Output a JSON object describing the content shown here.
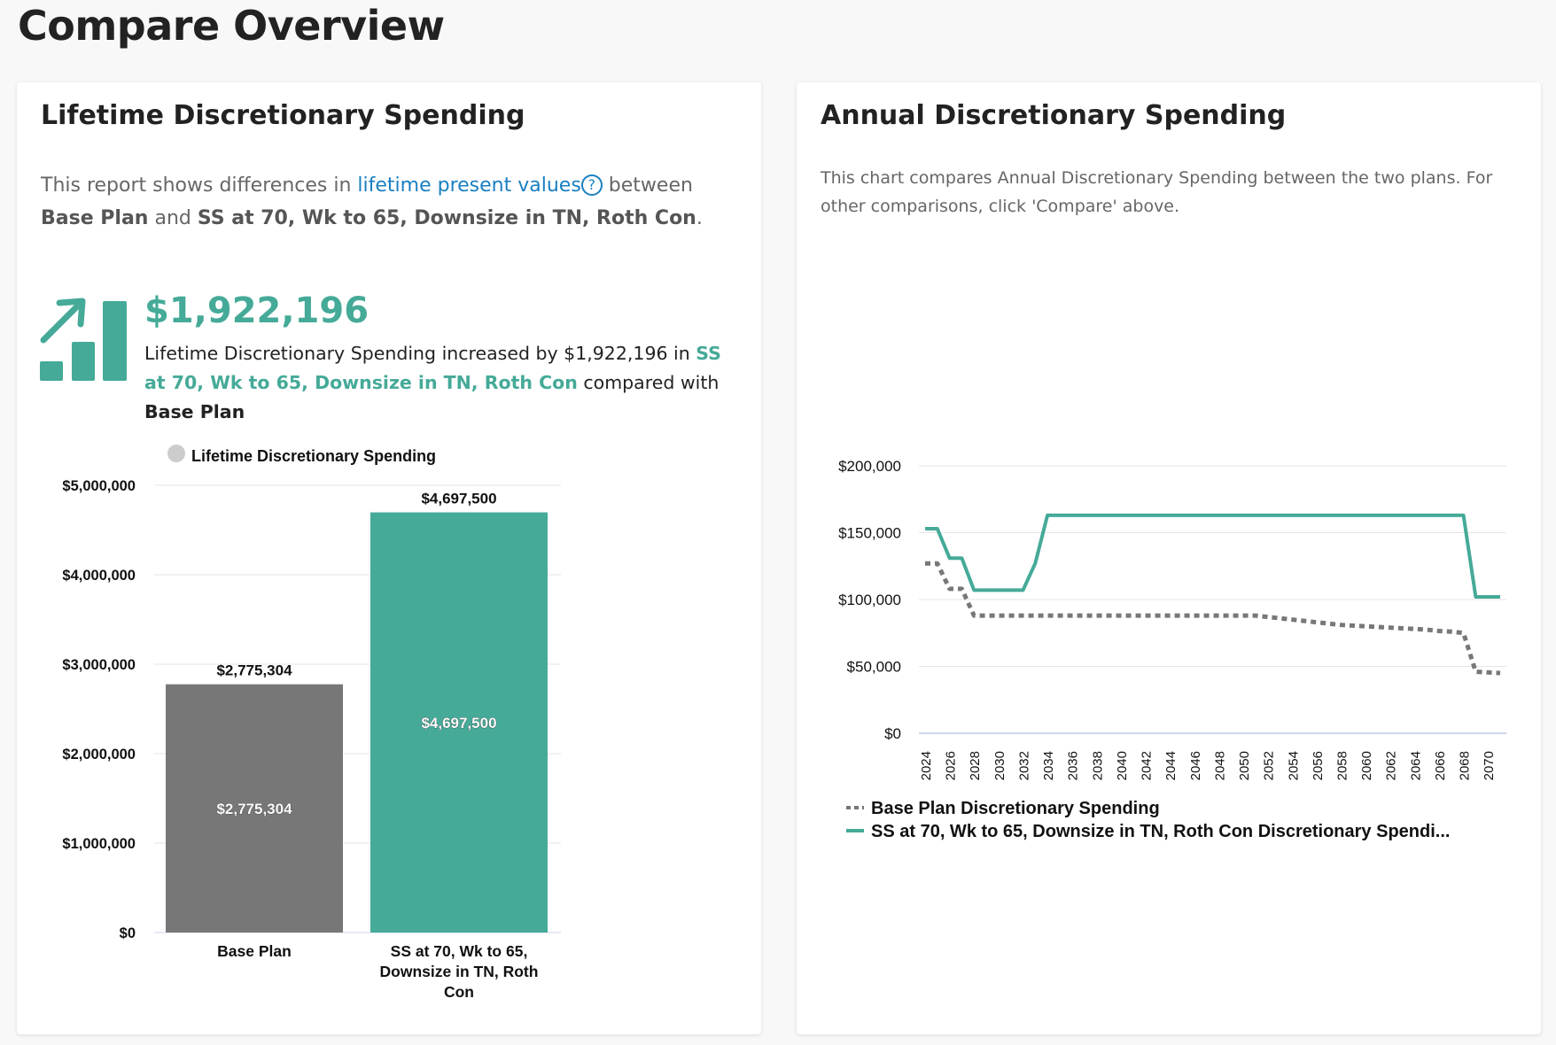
{
  "page_title": "Compare Overview",
  "left": {
    "title": "Lifetime Discretionary Spending",
    "desc_pre": "This report shows differences in",
    "desc_link": "lifetime present values",
    "desc_help": "?",
    "desc_mid": "between",
    "plan_a": "Base Plan",
    "and": "and",
    "plan_b": "SS at 70, Wk to 65, Downsize in TN, Roth Con",
    "period": ".",
    "big_value": "$1,922,196",
    "summary_pre": "Lifetime Discretionary Spending increased by $1,922,196 in",
    "summary_plan": "SS at 70, Wk to 65, Downsize in TN, Roth Con",
    "summary_mid": "compared with",
    "summary_base": "Base Plan"
  },
  "right": {
    "title": "Annual Discretionary Spending",
    "desc": "This chart compares Annual Discretionary Spending between the two plans. For other comparisons, click 'Compare' above."
  },
  "colors": {
    "teal": "#45aa98",
    "gray": "#777777",
    "link": "#1a7fc1"
  },
  "chart_data": [
    {
      "type": "bar",
      "title": "",
      "legend": "Lifetime Discretionary Spending",
      "legend_position": "top",
      "categories": [
        "Base Plan",
        "SS at 70, Wk to 65, Downsize in TN, Roth Con"
      ],
      "category_lines": [
        [
          "Base Plan"
        ],
        [
          "SS at 70, Wk to 65,",
          "Downsize in TN, Roth",
          "Con"
        ]
      ],
      "values": [
        2775304,
        4697500
      ],
      "value_labels": [
        "$2,775,304",
        "$4,697,500"
      ],
      "colors": [
        "#777777",
        "#45aa98"
      ],
      "ylim": [
        0,
        5000000
      ],
      "yticks": [
        0,
        1000000,
        2000000,
        3000000,
        4000000,
        5000000
      ],
      "ytick_labels": [
        "$0",
        "$1,000,000",
        "$2,000,000",
        "$3,000,000",
        "$4,000,000",
        "$5,000,000"
      ]
    },
    {
      "type": "line",
      "title": "",
      "legend_position": "bottom",
      "x": [
        2024,
        2025,
        2026,
        2027,
        2028,
        2029,
        2030,
        2031,
        2032,
        2033,
        2034,
        2035,
        2036,
        2037,
        2038,
        2039,
        2040,
        2041,
        2042,
        2043,
        2044,
        2045,
        2046,
        2047,
        2048,
        2049,
        2050,
        2051,
        2052,
        2053,
        2054,
        2055,
        2056,
        2057,
        2058,
        2059,
        2060,
        2061,
        2062,
        2063,
        2064,
        2065,
        2066,
        2067,
        2068,
        2069,
        2070,
        2071
      ],
      "xtick_labels": [
        "2024",
        "2026",
        "2028",
        "2030",
        "2032",
        "2034",
        "2036",
        "2038",
        "2040",
        "2042",
        "2044",
        "2046",
        "2048",
        "2050",
        "2052",
        "2054",
        "2056",
        "2058",
        "2060",
        "2062",
        "2064",
        "2066",
        "2068",
        "2070"
      ],
      "ylim": [
        0,
        200000
      ],
      "yticks": [
        0,
        50000,
        100000,
        150000,
        200000
      ],
      "ytick_labels": [
        "$0",
        "$50,000",
        "$100,000",
        "$150,000",
        "$200,000"
      ],
      "series": [
        {
          "name": "Base Plan Discretionary Spending",
          "style": "dotted",
          "color": "#777777",
          "values": [
            127000,
            127000,
            108000,
            108000,
            88000,
            88000,
            88000,
            88000,
            88000,
            88000,
            88000,
            88000,
            88000,
            88000,
            88000,
            88000,
            88000,
            88000,
            88000,
            88000,
            88000,
            88000,
            88000,
            88000,
            88000,
            88000,
            88000,
            88000,
            87000,
            86000,
            85000,
            84000,
            83000,
            82000,
            81000,
            80500,
            80000,
            79500,
            79000,
            78500,
            78000,
            77500,
            76500,
            76000,
            75000,
            46000,
            45500,
            45000
          ]
        },
        {
          "name": "SS at 70, Wk to 65, Downsize in TN, Roth Con Discretionary Spendi...",
          "style": "solid",
          "color": "#45aa98",
          "values": [
            153000,
            153000,
            131000,
            131000,
            107000,
            107000,
            107000,
            107000,
            107000,
            127000,
            163000,
            163000,
            163000,
            163000,
            163000,
            163000,
            163000,
            163000,
            163000,
            163000,
            163000,
            163000,
            163000,
            163000,
            163000,
            163000,
            163000,
            163000,
            163000,
            163000,
            163000,
            163000,
            163000,
            163000,
            163000,
            163000,
            163000,
            163000,
            163000,
            163000,
            163000,
            163000,
            163000,
            163000,
            163000,
            102000,
            102000,
            102000
          ]
        }
      ]
    }
  ]
}
